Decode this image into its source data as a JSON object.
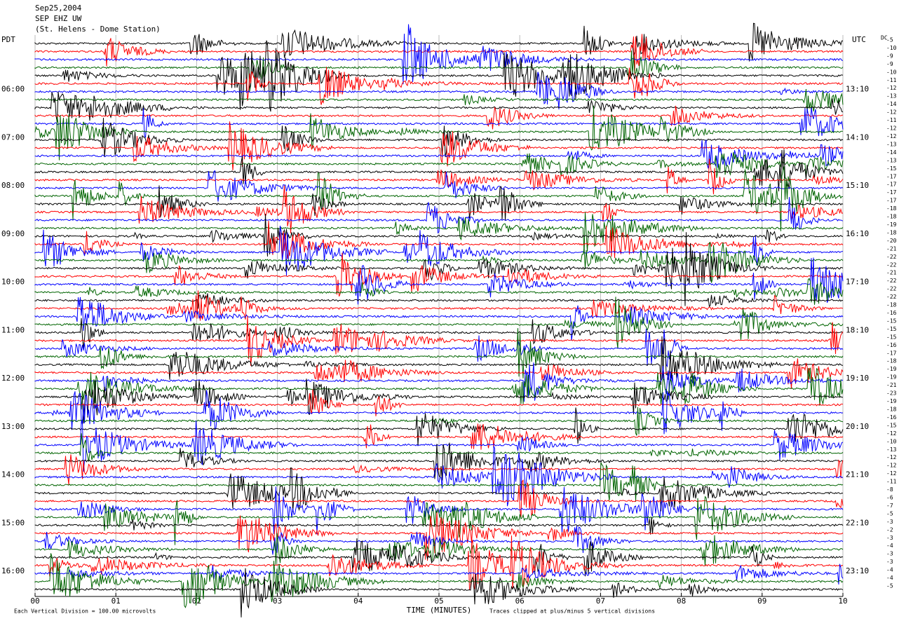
{
  "chart_data": {
    "type": "helicorder",
    "title_lines": [
      "Sep25,2004",
      "SEP EHZ UW",
      "(St. Helens - Dome Station)"
    ],
    "left_zone": "PDT",
    "right_zone": "UTC",
    "offset_header": "DC",
    "left_labels": [
      "06:00",
      "07:00",
      "08:00",
      "09:00",
      "10:00",
      "11:00",
      "12:00",
      "13:00",
      "14:00",
      "15:00",
      "16:00"
    ],
    "right_labels": [
      "13:10",
      "14:10",
      "15:10",
      "16:10",
      "17:10",
      "18:10",
      "19:10",
      "20:10",
      "21:10",
      "22:10",
      "23:10"
    ],
    "offsets": [
      -5,
      -10,
      -9,
      -9,
      -10,
      -11,
      -12,
      -13,
      -14,
      -12,
      -11,
      -12,
      -12,
      -13,
      -14,
      -13,
      -15,
      -17,
      -17,
      -17,
      -17,
      -18,
      -18,
      -19,
      -18,
      -20,
      -21,
      -22,
      -22,
      -21,
      -22,
      -22,
      -22,
      -18,
      -16,
      -15,
      -15,
      -15,
      -16,
      -17,
      -18,
      -19,
      -19,
      -21,
      -23,
      -19,
      -18,
      -16,
      -15,
      -12,
      -10,
      -13,
      -12,
      -12,
      -12,
      -11,
      -8,
      -6,
      -7,
      -5,
      -3,
      -2,
      -3,
      -4,
      -3,
      -3,
      -4,
      -4,
      -5
    ],
    "trace_colors": [
      "#000000",
      "#ff0000",
      "#0000ff",
      "#006400"
    ],
    "xlim": [
      0,
      10
    ],
    "xticks": [
      {
        "value": 0,
        "label": "00"
      },
      {
        "value": 1,
        "label": "01"
      },
      {
        "value": 2,
        "label": "02"
      },
      {
        "value": 3,
        "label": "03"
      },
      {
        "value": 4,
        "label": "04"
      },
      {
        "value": 5,
        "label": "05"
      },
      {
        "value": 6,
        "label": "06"
      },
      {
        "value": 7,
        "label": "07"
      },
      {
        "value": 8,
        "label": "08"
      },
      {
        "value": 9,
        "label": "09"
      },
      {
        "value": 10,
        "label": "10"
      }
    ],
    "xlabel": "TIME (MINUTES)",
    "scale_note": "Each Vertical Division =  100.00 microvolts",
    "clip_note": "Traces clipped at plus/minus 5 vertical divisions",
    "grid": true
  }
}
